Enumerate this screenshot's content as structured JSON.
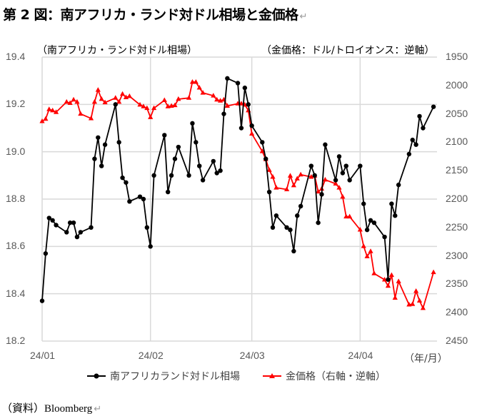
{
  "title": "第 2 図：南アフリカ・ランド対ドル相場と金価格",
  "source": "（資料）Bloomberg",
  "chart_data": {
    "type": "line",
    "left_axis_title": "（南アフリカ・ランド対ドル相場）",
    "right_axis_title": "（金価格：ドル/トロイオンス：逆軸）",
    "x_unit_label": "（年/月）",
    "x_ticks": [
      {
        "date": "2024-01-01",
        "label": "24/01"
      },
      {
        "date": "2024-02-01",
        "label": "24/02"
      },
      {
        "date": "2024-03-01",
        "label": "24/03"
      },
      {
        "date": "2024-04-01",
        "label": "24/04"
      }
    ],
    "xlim": [
      "2024-01-01",
      "2024-04-23"
    ],
    "left_ylim": [
      18.2,
      19.4
    ],
    "left_ticks": [
      "19.4",
      "19.2",
      "19.0",
      "18.8",
      "18.6",
      "18.4",
      "18.2"
    ],
    "right_ylim": [
      1950,
      2450
    ],
    "right_inverted": true,
    "right_ticks": [
      "1950",
      "2000",
      "2050",
      "2100",
      "2150",
      "2200",
      "2250",
      "2300",
      "2350",
      "2400",
      "2450"
    ],
    "grid": true,
    "legend_position": "bottom",
    "dates": [
      "2024-01-01",
      "2024-01-02",
      "2024-01-03",
      "2024-01-04",
      "2024-01-05",
      "2024-01-08",
      "2024-01-09",
      "2024-01-10",
      "2024-01-11",
      "2024-01-12",
      "2024-01-15",
      "2024-01-16",
      "2024-01-17",
      "2024-01-18",
      "2024-01-19",
      "2024-01-22",
      "2024-01-23",
      "2024-01-24",
      "2024-01-25",
      "2024-01-26",
      "2024-01-29",
      "2024-01-30",
      "2024-01-31",
      "2024-02-01",
      "2024-02-02",
      "2024-02-05",
      "2024-02-06",
      "2024-02-07",
      "2024-02-08",
      "2024-02-09",
      "2024-02-12",
      "2024-02-13",
      "2024-02-14",
      "2024-02-15",
      "2024-02-16",
      "2024-02-19",
      "2024-02-20",
      "2024-02-21",
      "2024-02-22",
      "2024-02-23",
      "2024-02-26",
      "2024-02-27",
      "2024-02-28",
      "2024-02-29",
      "2024-03-01",
      "2024-03-04",
      "2024-03-05",
      "2024-03-06",
      "2024-03-07",
      "2024-03-08",
      "2024-03-11",
      "2024-03-12",
      "2024-03-13",
      "2024-03-14",
      "2024-03-15",
      "2024-03-18",
      "2024-03-19",
      "2024-03-20",
      "2024-03-21",
      "2024-03-22",
      "2024-03-25",
      "2024-03-26",
      "2024-03-27",
      "2024-03-28",
      "2024-03-29",
      "2024-04-01",
      "2024-04-02",
      "2024-04-03",
      "2024-04-04",
      "2024-04-05",
      "2024-04-08",
      "2024-04-09",
      "2024-04-10",
      "2024-04-11",
      "2024-04-12",
      "2024-04-15",
      "2024-04-16",
      "2024-04-17",
      "2024-04-18",
      "2024-04-19",
      "2024-04-22"
    ],
    "series": [
      {
        "name": "南アフリカランド対ドル相場",
        "axis": "left",
        "color": "#000000",
        "marker": "circle",
        "values": [
          18.37,
          18.57,
          18.72,
          18.71,
          18.69,
          18.66,
          18.7,
          18.7,
          18.64,
          18.66,
          18.68,
          18.97,
          19.06,
          18.94,
          19.03,
          19.2,
          19.04,
          18.89,
          18.87,
          18.79,
          18.81,
          18.8,
          18.68,
          18.6,
          18.9,
          19.07,
          18.83,
          18.9,
          18.97,
          19.02,
          18.9,
          19.12,
          19.04,
          18.94,
          18.88,
          18.96,
          18.91,
          18.92,
          19.16,
          19.31,
          19.29,
          19.1,
          19.27,
          19.2,
          19.11,
          19.04,
          18.97,
          18.83,
          18.68,
          18.73,
          18.68,
          18.67,
          18.58,
          18.73,
          18.77,
          18.94,
          18.9,
          18.7,
          18.82,
          19.03,
          18.88,
          18.98,
          18.91,
          18.94,
          18.88,
          18.94,
          18.78,
          18.67,
          18.71,
          18.7,
          18.64,
          18.46,
          18.78,
          18.73,
          18.86,
          18.99,
          19.05,
          19.03,
          19.15,
          19.1,
          19.19
        ]
      },
      {
        "name": "金価格（右軸・逆軸）",
        "axis": "right",
        "color": "#ff0000",
        "marker": "triangle",
        "values": [
          2063,
          2059,
          2042,
          2044,
          2047,
          2029,
          2031,
          2025,
          2029,
          2050,
          2058,
          2029,
          2008,
          2024,
          2030,
          2022,
          2029,
          2015,
          2021,
          2019,
          2034,
          2037,
          2040,
          2056,
          2040,
          2026,
          2037,
          2036,
          2035,
          2024,
          2022,
          1994,
          1994,
          2004,
          2013,
          2018,
          2025,
          2027,
          2025,
          2036,
          2032,
          2032,
          2034,
          2044,
          2085,
          2116,
          2130,
          2149,
          2161,
          2180,
          2183,
          2159,
          2176,
          2164,
          2157,
          2161,
          2159,
          2187,
          2182,
          2166,
          2173,
          2180,
          2196,
          2231,
          2231,
          2254,
          2283,
          2301,
          2292,
          2331,
          2342,
          2353,
          2334,
          2374,
          2345,
          2386,
          2385,
          2362,
          2379,
          2392,
          2329
        ]
      }
    ]
  }
}
